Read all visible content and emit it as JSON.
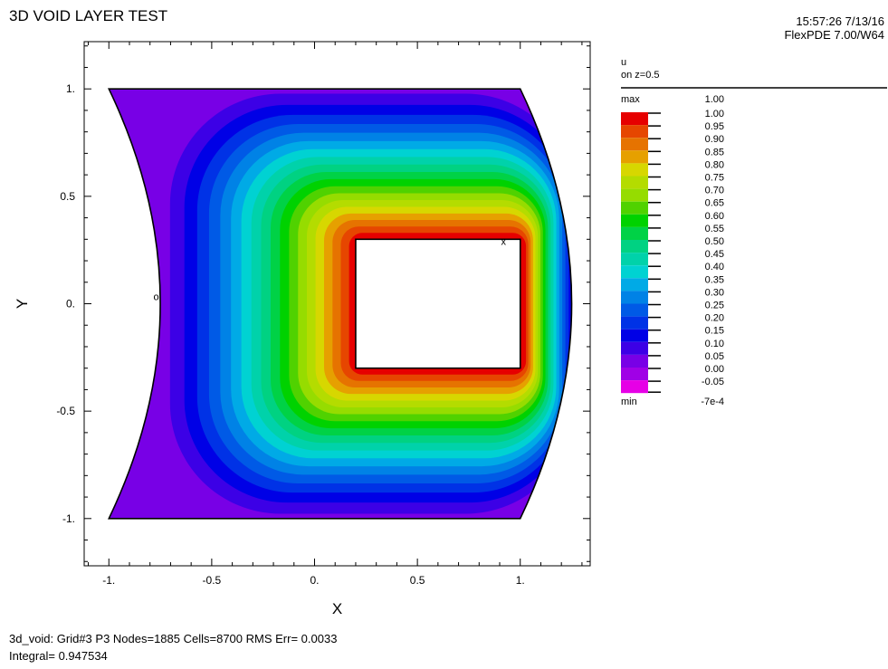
{
  "title": "3D VOID LAYER TEST",
  "timestamp": "15:57:26 7/13/16",
  "version": "FlexPDE 7.00/W64",
  "legend": {
    "variable": "u",
    "plane": "on z=0.5",
    "max_label": "max",
    "max_value": "1.00",
    "min_label": "min",
    "min_value": "-7e-4",
    "levels": [
      {
        "value": "1.00",
        "color": "#e60000"
      },
      {
        "value": "0.95",
        "color": "#e64600"
      },
      {
        "value": "0.90",
        "color": "#e67300"
      },
      {
        "value": "0.85",
        "color": "#e6a000"
      },
      {
        "value": "0.80",
        "color": "#d7d700"
      },
      {
        "value": "0.75",
        "color": "#b4dc00"
      },
      {
        "value": "0.70",
        "color": "#96dc00"
      },
      {
        "value": "0.65",
        "color": "#50d200"
      },
      {
        "value": "0.60",
        "color": "#00d200"
      },
      {
        "value": "0.55",
        "color": "#00d246"
      },
      {
        "value": "0.50",
        "color": "#00d282"
      },
      {
        "value": "0.45",
        "color": "#00d2aa"
      },
      {
        "value": "0.40",
        "color": "#00d2d2"
      },
      {
        "value": "0.35",
        "color": "#00aae6"
      },
      {
        "value": "0.30",
        "color": "#0082e6"
      },
      {
        "value": "0.25",
        "color": "#005ae6"
      },
      {
        "value": "0.20",
        "color": "#0032e6"
      },
      {
        "value": "0.15",
        "color": "#0000e6"
      },
      {
        "value": "0.10",
        "color": "#3c00e6"
      },
      {
        "value": "0.05",
        "color": "#7800e6"
      },
      {
        "value": "0.00",
        "color": "#a000e6"
      },
      {
        "value": "-0.05",
        "color": "#e600e6"
      }
    ]
  },
  "chart_data": {
    "type": "heatmap",
    "title": "3D VOID LAYER TEST",
    "xlabel": "X",
    "ylabel": "Y",
    "xlim": [
      -1.12,
      1.34
    ],
    "ylim": [
      -1.22,
      1.22
    ],
    "xticks": [
      "-1.",
      "-0.5",
      "0.",
      "0.5",
      "1."
    ],
    "yticks": [
      "1.",
      "0.5",
      "0.",
      "-0.5",
      "-1."
    ],
    "xtick_values": [
      -1,
      -0.5,
      0,
      0.5,
      1
    ],
    "ytick_values": [
      1,
      0.5,
      0,
      -0.5,
      -1
    ],
    "domain_outline": {
      "top_left": [
        -1,
        1
      ],
      "top_right": [
        1,
        1
      ],
      "right_arc_mid": [
        1.25,
        0
      ],
      "bottom_right": [
        1,
        -1
      ],
      "bottom_left": [
        -1,
        -1
      ],
      "left_arc_mid": [
        -0.75,
        0
      ]
    },
    "void_rect": {
      "x": [
        0.2,
        1.0
      ],
      "y": [
        -0.3,
        0.3
      ]
    },
    "field": "u",
    "u_on_void_boundary": 1.0,
    "u_on_outer_boundary": 0.0,
    "min_marker": [
      -0.77,
      0.03
    ],
    "max_marker": [
      0.92,
      0.29
    ]
  },
  "footer": {
    "line1": "3d_void:  Grid#3  P3  Nodes=1885 Cells=8700 RMS Err= 0.0033",
    "line2": "Integral=  0.947534"
  }
}
